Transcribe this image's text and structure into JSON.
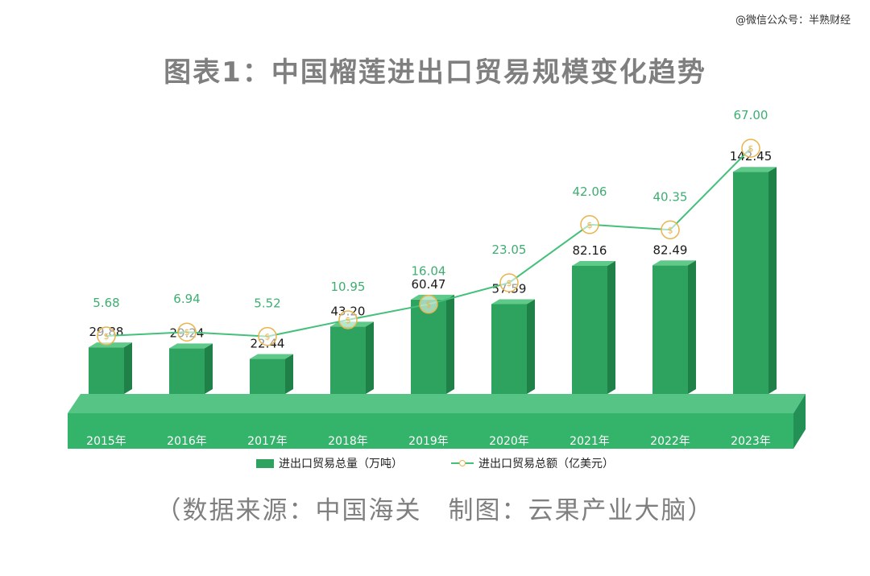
{
  "watermark": "@微信公众号：半熟财经",
  "title": "图表1：中国榴莲进出口贸易规模变化趋势",
  "source": "（数据来源：中国海关　制图：云果产业大脑）",
  "colors": {
    "bar": "#2ea35f",
    "bar_side": "#1f8048",
    "bar_top": "#5fc98a",
    "line": "#45c07a",
    "marker": "#e9b44c",
    "line_label": "#3fae72",
    "base": "#34b36a"
  },
  "chart_data": {
    "type": "bar",
    "categories": [
      "2015年",
      "2016年",
      "2017年",
      "2018年",
      "2019年",
      "2020年",
      "2021年",
      "2022年",
      "2023年"
    ],
    "series": [
      {
        "name": "进出口贸易总量（万吨）",
        "type": "bar",
        "values": [
          29.88,
          29.24,
          22.44,
          43.2,
          60.47,
          57.59,
          82.16,
          82.49,
          142.45
        ],
        "labels": [
          "29.88",
          "29.24",
          "22.44",
          "43.20",
          "60.47",
          "57.59",
          "82.16",
          "82.49",
          "142.45"
        ]
      },
      {
        "name": "进出口贸易总额（亿美元）",
        "type": "line",
        "values": [
          5.68,
          6.94,
          5.52,
          10.95,
          16.04,
          23.05,
          42.06,
          40.35,
          67.0
        ],
        "labels": [
          "5.68",
          "6.94",
          "5.52",
          "10.95",
          "16.04",
          "23.05",
          "42.06",
          "40.35",
          "67.00"
        ]
      }
    ],
    "legend_position": "bottom",
    "grid": false
  }
}
